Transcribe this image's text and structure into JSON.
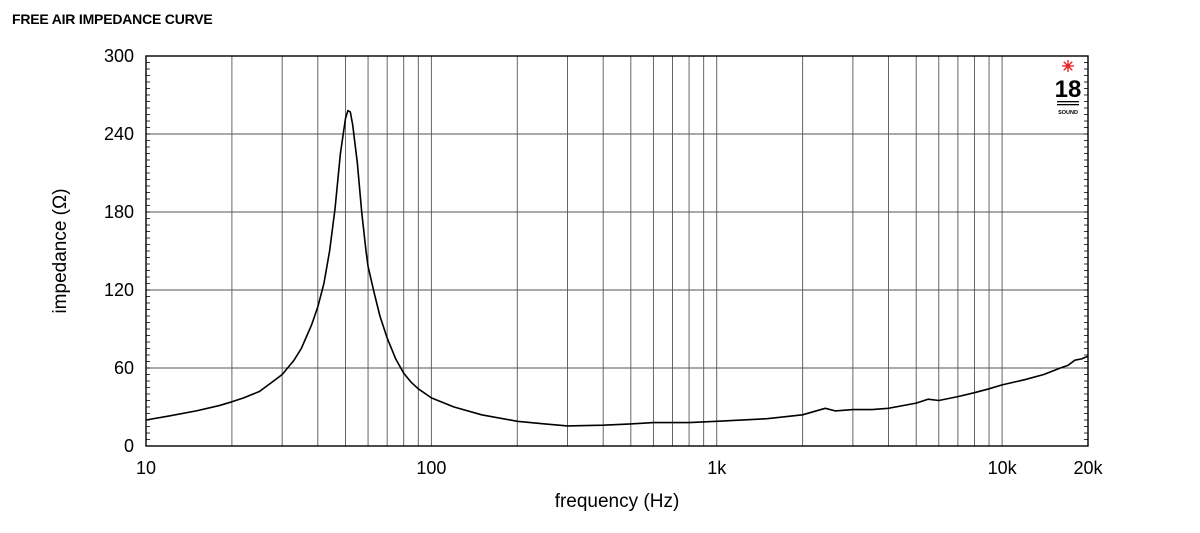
{
  "header": {
    "title": "FREE AIR IMPEDANCE CURVE"
  },
  "logo": {
    "text": "18",
    "subtext": "SOUND",
    "accent_color": "#e8262c"
  },
  "chart_data": {
    "type": "line",
    "xlabel": "frequency (Hz)",
    "ylabel": "impedance (Ω)",
    "x_scale": "log",
    "xlim": [
      10,
      20000
    ],
    "ylim": [
      0,
      300
    ],
    "grid": true,
    "x_ticks": [
      {
        "value": 10,
        "label": "10"
      },
      {
        "value": 100,
        "label": "100"
      },
      {
        "value": 1000,
        "label": "1k"
      },
      {
        "value": 10000,
        "label": "10k"
      },
      {
        "value": 20000,
        "label": "20k"
      }
    ],
    "y_ticks": [
      {
        "value": 0,
        "label": "0"
      },
      {
        "value": 60,
        "label": "60"
      },
      {
        "value": 120,
        "label": "120"
      },
      {
        "value": 180,
        "label": "180"
      },
      {
        "value": 240,
        "label": "240"
      },
      {
        "value": 300,
        "label": "300"
      }
    ],
    "series": [
      {
        "color": "#000000",
        "points": [
          [
            10,
            20
          ],
          [
            12,
            23
          ],
          [
            15,
            27
          ],
          [
            18,
            31
          ],
          [
            20,
            34
          ],
          [
            22,
            37
          ],
          [
            25,
            42
          ],
          [
            28,
            50
          ],
          [
            30,
            55
          ],
          [
            33,
            66
          ],
          [
            35,
            75
          ],
          [
            38,
            93
          ],
          [
            40,
            107
          ],
          [
            42,
            125
          ],
          [
            44,
            150
          ],
          [
            46,
            183
          ],
          [
            48,
            225
          ],
          [
            50,
            252
          ],
          [
            51,
            258
          ],
          [
            52,
            257
          ],
          [
            53,
            247
          ],
          [
            55,
            218
          ],
          [
            57,
            180
          ],
          [
            59,
            150
          ],
          [
            60,
            138
          ],
          [
            63,
            118
          ],
          [
            66,
            100
          ],
          [
            70,
            83
          ],
          [
            75,
            67
          ],
          [
            80,
            56
          ],
          [
            85,
            49
          ],
          [
            90,
            44
          ],
          [
            100,
            37
          ],
          [
            120,
            30
          ],
          [
            150,
            24
          ],
          [
            200,
            19
          ],
          [
            250,
            17
          ],
          [
            300,
            15.5
          ],
          [
            400,
            16
          ],
          [
            500,
            17
          ],
          [
            600,
            18
          ],
          [
            700,
            18
          ],
          [
            800,
            18
          ],
          [
            1000,
            19
          ],
          [
            1500,
            21
          ],
          [
            2000,
            24
          ],
          [
            2400,
            29
          ],
          [
            2600,
            27
          ],
          [
            3000,
            28
          ],
          [
            3500,
            28
          ],
          [
            4000,
            29
          ],
          [
            5000,
            33
          ],
          [
            5500,
            36
          ],
          [
            6000,
            35
          ],
          [
            7000,
            38
          ],
          [
            8000,
            41
          ],
          [
            9000,
            44
          ],
          [
            10000,
            47
          ],
          [
            12000,
            51
          ],
          [
            14000,
            55
          ],
          [
            16000,
            60
          ],
          [
            17000,
            62
          ],
          [
            18000,
            66
          ],
          [
            19000,
            67
          ],
          [
            20000,
            69
          ]
        ]
      }
    ]
  }
}
